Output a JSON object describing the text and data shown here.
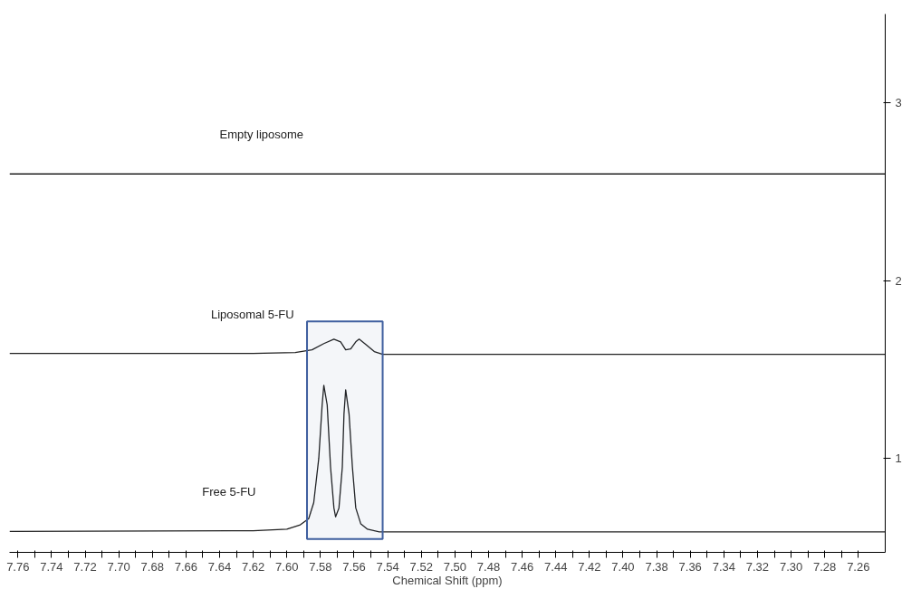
{
  "chart_data": {
    "type": "line",
    "xlabel": "Chemical Shift (ppm)",
    "xlim": [
      7.765,
      7.244
    ],
    "ylim": [
      0.47,
      3.5
    ],
    "xticks": [
      {
        "value": 7.76,
        "label": "7.76"
      },
      {
        "value": 7.75,
        "label": null
      },
      {
        "value": 7.74,
        "label": "7.74"
      },
      {
        "value": 7.73,
        "label": null
      },
      {
        "value": 7.72,
        "label": "7.72"
      },
      {
        "value": 7.71,
        "label": null
      },
      {
        "value": 7.7,
        "label": "7.70"
      },
      {
        "value": 7.69,
        "label": null
      },
      {
        "value": 7.68,
        "label": "7.68"
      },
      {
        "value": 7.67,
        "label": null
      },
      {
        "value": 7.66,
        "label": "7.66"
      },
      {
        "value": 7.65,
        "label": null
      },
      {
        "value": 7.64,
        "label": "7.64"
      },
      {
        "value": 7.63,
        "label": null
      },
      {
        "value": 7.62,
        "label": "7.62"
      },
      {
        "value": 7.61,
        "label": null
      },
      {
        "value": 7.6,
        "label": "7.60"
      },
      {
        "value": 7.59,
        "label": null
      },
      {
        "value": 7.58,
        "label": "7.58"
      },
      {
        "value": 7.57,
        "label": null
      },
      {
        "value": 7.56,
        "label": "7.56"
      },
      {
        "value": 7.55,
        "label": null
      },
      {
        "value": 7.54,
        "label": "7.54"
      },
      {
        "value": 7.53,
        "label": null
      },
      {
        "value": 7.52,
        "label": "7.52"
      },
      {
        "value": 7.51,
        "label": null
      },
      {
        "value": 7.5,
        "label": "7.50"
      },
      {
        "value": 7.49,
        "label": null
      },
      {
        "value": 7.48,
        "label": "7.48"
      },
      {
        "value": 7.47,
        "label": null
      },
      {
        "value": 7.46,
        "label": "7.46"
      },
      {
        "value": 7.45,
        "label": null
      },
      {
        "value": 7.44,
        "label": "7.44"
      },
      {
        "value": 7.43,
        "label": null
      },
      {
        "value": 7.42,
        "label": "7.42"
      },
      {
        "value": 7.41,
        "label": null
      },
      {
        "value": 7.4,
        "label": "7.40"
      },
      {
        "value": 7.39,
        "label": null
      },
      {
        "value": 7.38,
        "label": "7.38"
      },
      {
        "value": 7.37,
        "label": null
      },
      {
        "value": 7.36,
        "label": "7.36"
      },
      {
        "value": 7.35,
        "label": null
      },
      {
        "value": 7.34,
        "label": "7.34"
      },
      {
        "value": 7.33,
        "label": null
      },
      {
        "value": 7.32,
        "label": "7.32"
      },
      {
        "value": 7.31,
        "label": null
      },
      {
        "value": 7.3,
        "label": "7.30"
      },
      {
        "value": 7.29,
        "label": null
      },
      {
        "value": 7.28,
        "label": "7.28"
      },
      {
        "value": 7.27,
        "label": null
      },
      {
        "value": 7.26,
        "label": "7.26"
      }
    ],
    "yticks": [
      1,
      2,
      3
    ],
    "grid": false,
    "marker": "none",
    "line_style": "solid",
    "bands": [
      {
        "axis": "x",
        "from": 7.588,
        "to": 7.543,
        "color": "#3f5f9f"
      }
    ],
    "series": [
      {
        "name": "Empty liposome",
        "color": "#202020",
        "x": [
          7.765,
          7.6,
          7.4,
          7.244
        ],
        "values": [
          2.6,
          2.6,
          2.6,
          2.6
        ]
      },
      {
        "name": "Liposomal 5-FU",
        "color": "#202020",
        "x": [
          7.765,
          7.62,
          7.595,
          7.585,
          7.578,
          7.572,
          7.568,
          7.565,
          7.562,
          7.559,
          7.557,
          7.553,
          7.548,
          7.543,
          7.4,
          7.244
        ],
        "values": [
          1.59,
          1.59,
          1.595,
          1.61,
          1.645,
          1.67,
          1.655,
          1.61,
          1.615,
          1.655,
          1.67,
          1.64,
          1.6,
          1.585,
          1.585,
          1.585
        ]
      },
      {
        "name": "Free 5-FU",
        "color": "#202020",
        "x": [
          7.765,
          7.62,
          7.6,
          7.592,
          7.587,
          7.584,
          7.581,
          7.579,
          7.578,
          7.576,
          7.574,
          7.572,
          7.571,
          7.569,
          7.567,
          7.566,
          7.565,
          7.563,
          7.561,
          7.559,
          7.556,
          7.552,
          7.545,
          7.4,
          7.244
        ],
        "values": [
          0.588,
          0.592,
          0.6,
          0.625,
          0.66,
          0.75,
          1.0,
          1.3,
          1.41,
          1.3,
          0.95,
          0.72,
          0.67,
          0.72,
          0.95,
          1.25,
          1.385,
          1.25,
          0.95,
          0.72,
          0.63,
          0.6,
          0.585,
          0.585,
          0.585
        ]
      }
    ]
  }
}
